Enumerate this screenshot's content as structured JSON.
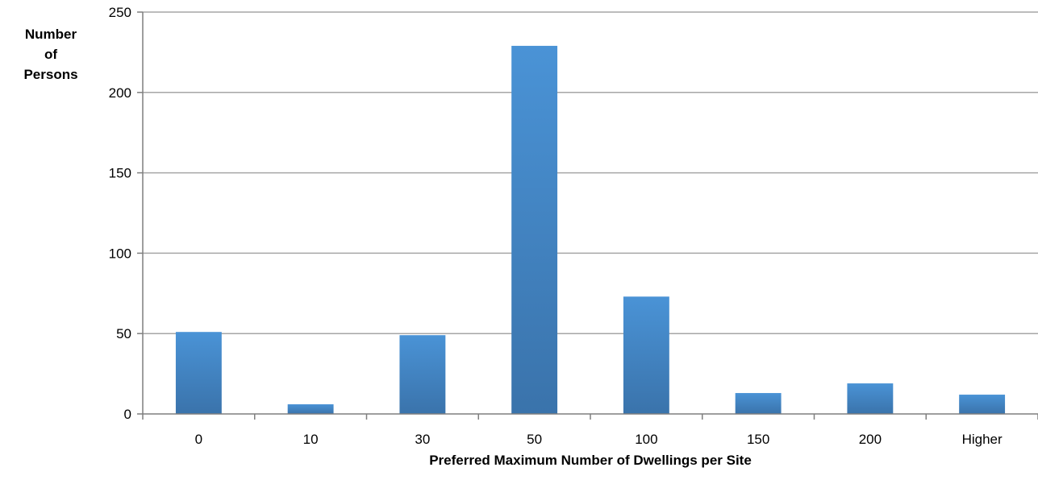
{
  "chart_data": {
    "type": "bar",
    "title": "",
    "ylabel_lines": [
      "Number",
      "of",
      "Persons"
    ],
    "xlabel": "Preferred Maximum Number of Dwellings per Site",
    "categories": [
      "0",
      "10",
      "30",
      "50",
      "100",
      "150",
      "200",
      "Higher"
    ],
    "values": [
      51,
      6,
      49,
      229,
      73,
      13,
      19,
      12
    ],
    "ylim": [
      0,
      250
    ],
    "yticks": [
      0,
      50,
      100,
      150,
      200,
      250
    ],
    "grid": true,
    "legend": "none",
    "colors": {
      "bar_top": "#4a93d6",
      "bar_bottom": "#3a73ab",
      "grid": "#a6a6a6",
      "axis": "#7f7f7f"
    }
  }
}
